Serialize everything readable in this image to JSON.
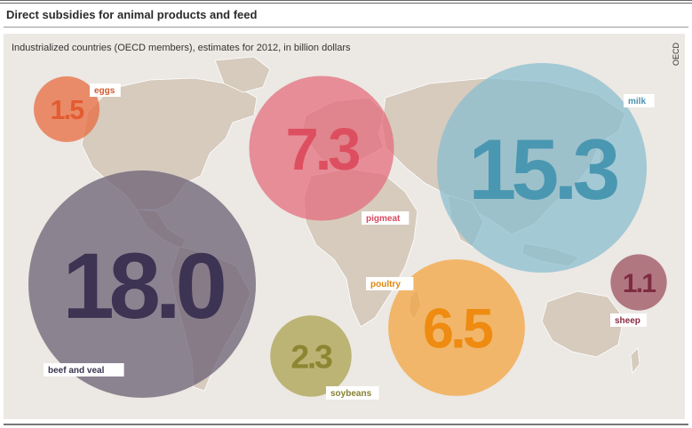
{
  "title": "Direct subsidies for animal products and feed",
  "subtitle": "Industrialized countries (OECD members), estimates for 2012, in billion dollars",
  "source": "OECD",
  "chart_data": {
    "type": "bubble",
    "unit": "billion dollars",
    "categories": [
      "eggs",
      "pigmeat",
      "milk",
      "beef and veal",
      "poultry",
      "soybeans",
      "sheep"
    ],
    "values": [
      1.5,
      7.3,
      15.3,
      18.0,
      6.5,
      2.3,
      1.1
    ],
    "value_labels": [
      "1.5",
      "7.3",
      "15.3",
      "18.0",
      "6.5",
      "2.3",
      "1.1"
    ],
    "colors": [
      "#e8663a",
      "#e36a7a",
      "#86bdd0",
      "#665b72",
      "#f3a23c",
      "#a8a04b",
      "#984b5c"
    ],
    "text_colors": [
      "#e35b30",
      "#dd4f60",
      "#4a97b2",
      "#3d3353",
      "#ee8b10",
      "#8d8530",
      "#7f2b3f"
    ],
    "label_colors": [
      "#d35a2c",
      "#d94a60",
      "#4c93b0",
      "#3a3450",
      "#e0870e",
      "#858030",
      "#8a2a40"
    ]
  }
}
